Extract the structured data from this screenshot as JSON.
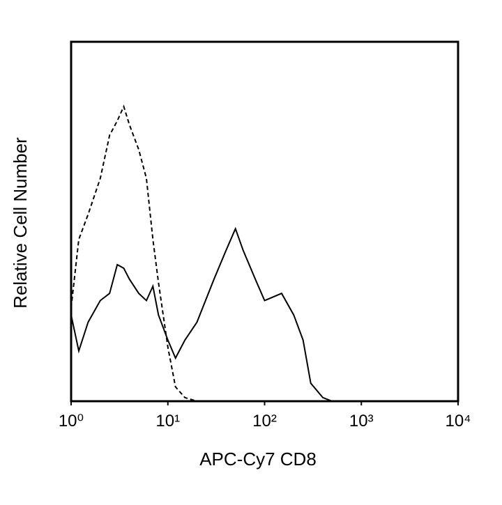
{
  "chart_data": {
    "type": "line",
    "xlabel": "APC-Cy7 CD8",
    "ylabel": "Relative Cell Number",
    "xscale": "log",
    "xlim": [
      1,
      10000
    ],
    "ylim": [
      0,
      100
    ],
    "xticks": [
      {
        "value": 1,
        "label": "10⁰"
      },
      {
        "value": 10,
        "label": "10¹"
      },
      {
        "value": 100,
        "label": "10²"
      },
      {
        "value": 1000,
        "label": "10³"
      },
      {
        "value": 10000,
        "label": "10⁴"
      }
    ],
    "x": [
      1,
      1.2,
      1.5,
      2,
      2.5,
      3,
      3.5,
      4,
      5,
      6,
      7,
      8,
      10,
      12,
      15,
      20,
      30,
      40,
      50,
      60,
      80,
      100,
      150,
      200,
      250,
      300,
      400,
      500,
      700,
      1000
    ],
    "series": [
      {
        "color": "#000000",
        "dash": "dashed",
        "values": [
          26,
          45,
          52,
          62,
          74,
          78,
          82,
          77,
          70,
          62,
          45,
          33,
          15,
          4,
          1,
          0,
          0,
          0,
          0,
          0,
          0,
          0,
          0,
          0,
          0,
          0,
          0,
          0,
          0,
          0
        ]
      },
      {
        "color": "#000000",
        "dash": "solid",
        "values": [
          24,
          14,
          22,
          28,
          30,
          38,
          37,
          34,
          30,
          28,
          32,
          24,
          17,
          12,
          17,
          22,
          34,
          42,
          48,
          42,
          34,
          28,
          30,
          24,
          17,
          5,
          1,
          0,
          0,
          0
        ]
      }
    ]
  }
}
